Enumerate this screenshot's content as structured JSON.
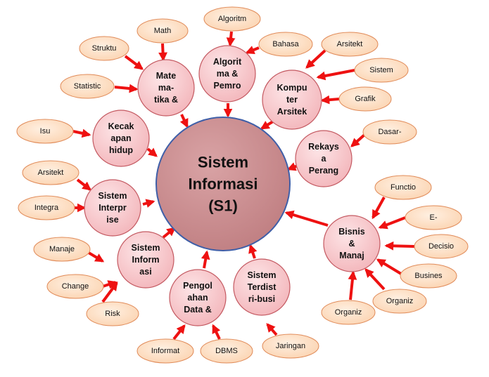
{
  "colors": {
    "center_fill": "#c98a8c",
    "center_stroke": "#3f5fa8",
    "node_fill": "#f7c9cc",
    "node_stroke": "#c45a62",
    "leaf_fill": "#fde0c6",
    "leaf_stroke": "#e08a58",
    "arrow": "#ee1111"
  },
  "center": {
    "id": "center",
    "lines": [
      "Sistem",
      "Informasi",
      "(S1)"
    ]
  },
  "nodes": [
    {
      "id": "n-matematika",
      "lines": [
        "Mate",
        "ma-",
        "tika &"
      ]
    },
    {
      "id": "n-algoritma",
      "lines": [
        "Algorit",
        "ma &",
        "Pemro"
      ]
    },
    {
      "id": "n-komputer",
      "lines": [
        "Kompu",
        "ter",
        "Arsitek"
      ]
    },
    {
      "id": "n-rekayasa",
      "lines": [
        "Rekays",
        "a",
        "Perang"
      ]
    },
    {
      "id": "n-bisnis",
      "lines": [
        "Bisnis",
        "&",
        "Manaj"
      ]
    },
    {
      "id": "n-terdistribusi",
      "lines": [
        "Sistem",
        "Terdist",
        "ri-busi"
      ]
    },
    {
      "id": "n-pengolahan",
      "lines": [
        "Pengol",
        "ahan",
        "Data &"
      ]
    },
    {
      "id": "n-sisinformasi",
      "lines": [
        "Sistem",
        "Inform",
        "asi"
      ]
    },
    {
      "id": "n-enterprise",
      "lines": [
        "Sistem",
        "Interpr",
        "ise"
      ]
    },
    {
      "id": "n-kecakapan",
      "lines": [
        "Kecak",
        "apan",
        "hidup"
      ]
    }
  ],
  "leaves": [
    {
      "id": "l-math",
      "text": "Math",
      "target": "n-matematika"
    },
    {
      "id": "l-struktu",
      "text": "Struktu",
      "target": "n-matematika"
    },
    {
      "id": "l-statistic",
      "text": "Statistic",
      "target": "n-matematika"
    },
    {
      "id": "l-algoritm",
      "text": "Algoritm",
      "target": "n-algoritma"
    },
    {
      "id": "l-bahasa",
      "text": "Bahasa",
      "target": "n-algoritma"
    },
    {
      "id": "l-arsitekt-top",
      "text": "Arsitekt",
      "target": "n-komputer"
    },
    {
      "id": "l-sistem-top",
      "text": "Sistem",
      "target": "n-komputer"
    },
    {
      "id": "l-grafik",
      "text": "Grafik",
      "target": "n-komputer"
    },
    {
      "id": "l-dasar",
      "text": "Dasar-",
      "target": "n-rekayasa"
    },
    {
      "id": "l-functio",
      "text": "Functio",
      "target": "n-bisnis"
    },
    {
      "id": "l-e",
      "text": "E-",
      "target": "n-bisnis"
    },
    {
      "id": "l-decisio",
      "text": "Decisio",
      "target": "n-bisnis"
    },
    {
      "id": "l-busines",
      "text": "Busines",
      "target": "n-bisnis"
    },
    {
      "id": "l-organiz-right",
      "text": "Organiz",
      "target": "n-bisnis"
    },
    {
      "id": "l-organiz-left",
      "text": "Organiz",
      "target": "n-bisnis"
    },
    {
      "id": "l-jaringan",
      "text": "Jaringan",
      "target": "n-terdistribusi"
    },
    {
      "id": "l-dbms",
      "text": "DBMS",
      "target": "n-pengolahan"
    },
    {
      "id": "l-informat",
      "text": "Informat",
      "target": "n-pengolahan"
    },
    {
      "id": "l-risk",
      "text": "Risk",
      "target": "n-sisinformasi"
    },
    {
      "id": "l-change",
      "text": "Change",
      "target": "n-sisinformasi"
    },
    {
      "id": "l-manaje",
      "text": "Manaje",
      "target": "n-sisinformasi"
    },
    {
      "id": "l-arsitekt-left",
      "text": "Arsitekt",
      "target": "n-enterprise"
    },
    {
      "id": "l-integra",
      "text": "Integra",
      "target": "n-enterprise"
    },
    {
      "id": "l-isu",
      "text": "Isu",
      "target": "n-kecakapan"
    }
  ]
}
